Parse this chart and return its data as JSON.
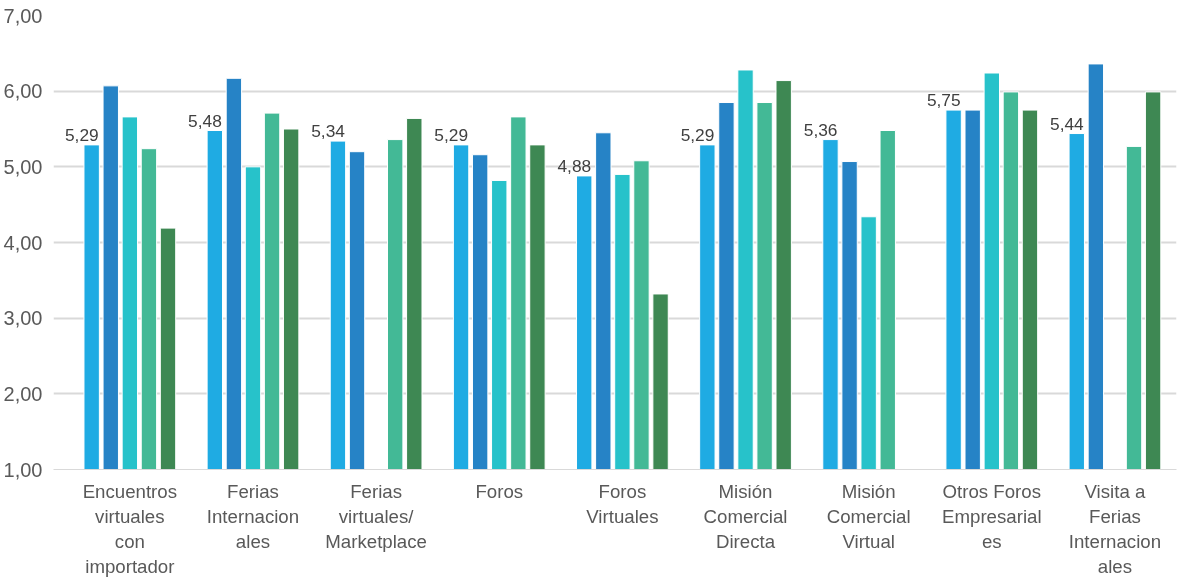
{
  "chart_data": {
    "type": "bar",
    "categories": [
      "Encuentros virtuales con importador",
      "Ferias Internacionales",
      "Ferias virtuales/ Marketplace",
      "Foros",
      "Foros Virtuales",
      "Misión Comercial Directa",
      "Misión Comercial Virtual",
      "Otros Foros Empresariales",
      "Visita a Ferias Internacionales"
    ],
    "series": [
      {
        "color": "#1fabe3",
        "values": [
          5.29,
          5.48,
          5.34,
          5.29,
          4.88,
          5.29,
          5.36,
          5.75,
          5.44
        ],
        "value_labels": [
          "5,29",
          "5,48",
          "5,34",
          "5,29",
          "4,88",
          "5,29",
          "5,36",
          "5,75",
          "5,44"
        ]
      },
      {
        "color": "#2683c6",
        "values": [
          6.07,
          6.17,
          5.2,
          5.16,
          5.45,
          5.85,
          5.07,
          5.75,
          6.36
        ]
      },
      {
        "color": "#27c2ca",
        "values": [
          5.66,
          5.0,
          null,
          4.82,
          4.9,
          6.28,
          4.34,
          6.24,
          null
        ]
      },
      {
        "color": "#43b996",
        "values": [
          5.24,
          5.71,
          5.36,
          5.66,
          5.08,
          5.85,
          5.48,
          5.99,
          5.27
        ]
      },
      {
        "color": "#3e8853",
        "values": [
          4.19,
          5.5,
          5.64,
          5.29,
          3.32,
          6.14,
          null,
          5.75,
          5.99
        ]
      }
    ],
    "ylim": [
      1,
      7
    ],
    "yticks": [
      {
        "value": 1,
        "label": "1,00"
      },
      {
        "value": 2,
        "label": "2,00"
      },
      {
        "value": 3,
        "label": "3,00"
      },
      {
        "value": 4,
        "label": "4,00"
      },
      {
        "value": 5,
        "label": "5,00"
      },
      {
        "value": 6,
        "label": "6,00"
      },
      {
        "value": 7,
        "label": "7,00"
      }
    ],
    "grid": "y"
  }
}
